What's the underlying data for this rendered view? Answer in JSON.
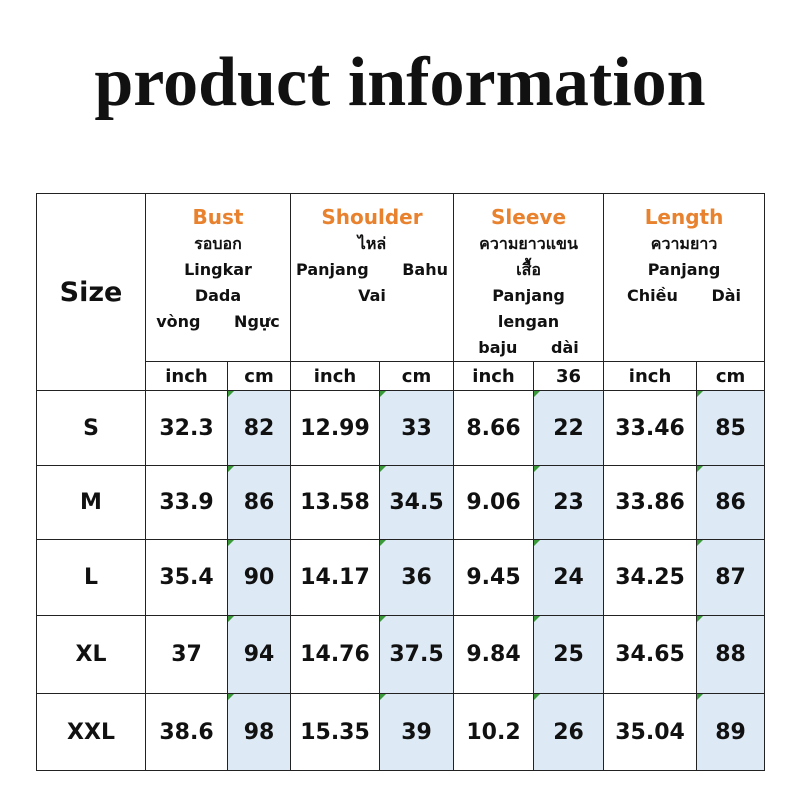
{
  "title": "product information",
  "table": {
    "corner": "Size",
    "groups": [
      {
        "name": "Bust",
        "lines": [
          "รอบอก",
          "Lingkar Dada",
          "vòng Ngực"
        ]
      },
      {
        "name": "Shoulder",
        "lines": [
          "ไหล่",
          "Panjang Bahu",
          "Vai"
        ]
      },
      {
        "name": "Sleeve",
        "lines": [
          "ความยาวแขน",
          "เสื้อ",
          "Panjang lengan",
          "baju dài"
        ]
      },
      {
        "name": "Length",
        "lines": [
          "ความยาว",
          "Panjang",
          "Chiều Dài"
        ]
      }
    ],
    "units": [
      "inch",
      "cm",
      "inch",
      "cm",
      "inch",
      "36",
      "inch",
      "cm"
    ],
    "rows": [
      [
        "S",
        "32.3",
        "82",
        "12.99",
        "33",
        "8.66",
        "22",
        "33.46",
        "85"
      ],
      [
        "M",
        "33.9",
        "86",
        "13.58",
        "34.5",
        "9.06",
        "23",
        "33.86",
        "86"
      ],
      [
        "L",
        "35.4",
        "90",
        "14.17",
        "36",
        "9.45",
        "24",
        "34.25",
        "87"
      ],
      [
        "XL",
        "37",
        "94",
        "14.76",
        "37.5",
        "9.84",
        "25",
        "34.65",
        "88"
      ],
      [
        "XXL",
        "38.6",
        "98",
        "15.35",
        "39",
        "10.2",
        "26",
        "35.04",
        "89"
      ]
    ]
  }
}
